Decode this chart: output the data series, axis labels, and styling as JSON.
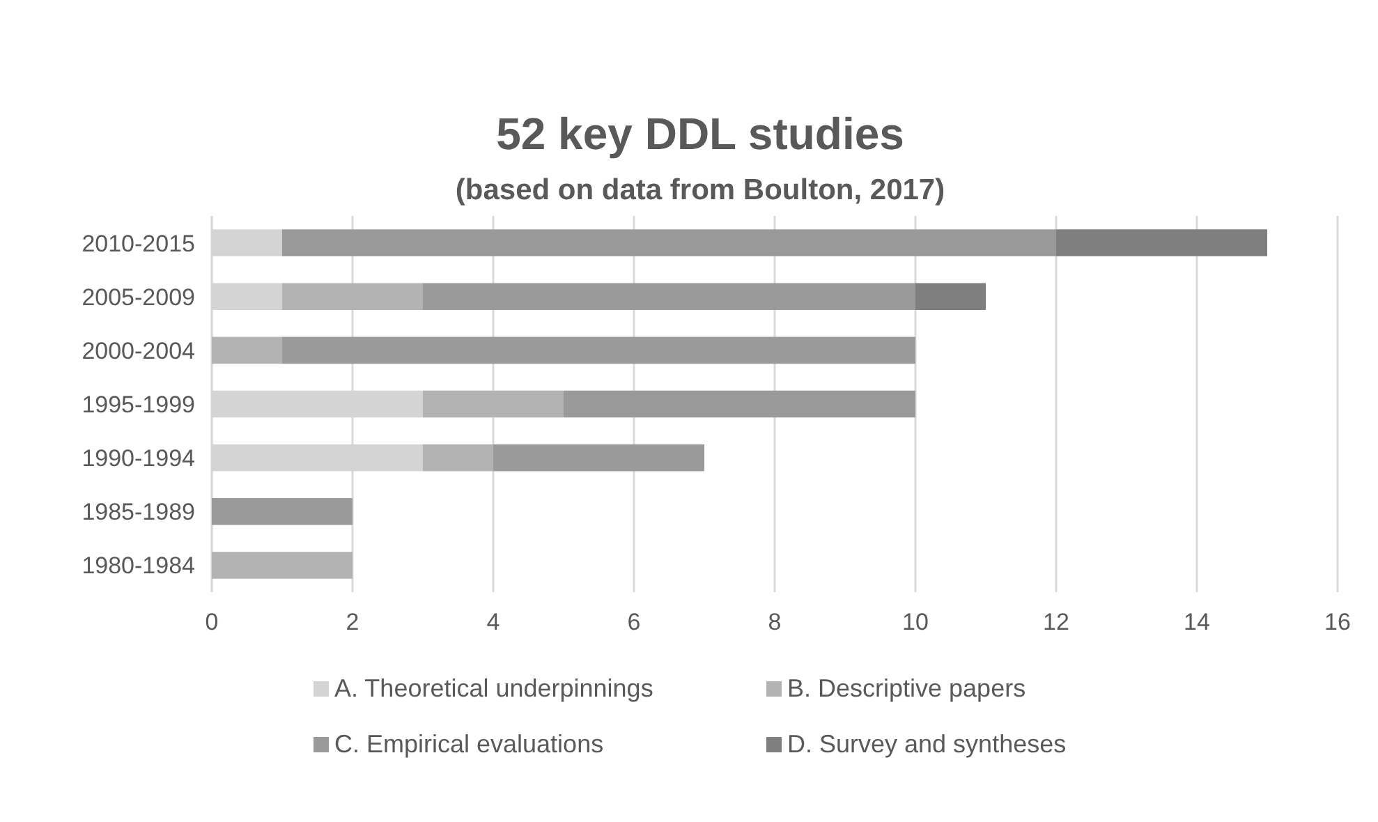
{
  "chart_data": {
    "type": "bar",
    "orientation": "horizontal",
    "stacked": true,
    "title": "52 key DDL studies",
    "subtitle": "(based on data from Boulton, 2017)",
    "categories": [
      "2010-2015",
      "2005-2009",
      "2000-2004",
      "1995-1999",
      "1990-1994",
      "1985-1989",
      "1980-1984"
    ],
    "series": [
      {
        "name": "A. Theoretical underpinnings",
        "color": "#d4d4d4",
        "values": [
          1,
          1,
          0,
          3,
          3,
          0,
          0
        ]
      },
      {
        "name": "B. Descriptive papers",
        "color": "#b3b3b3",
        "values": [
          0,
          2,
          1,
          2,
          1,
          0,
          2
        ]
      },
      {
        "name": "C. Empirical evaluations",
        "color": "#9a9a9a",
        "values": [
          11,
          7,
          9,
          5,
          3,
          2,
          0
        ]
      },
      {
        "name": "D. Survey and syntheses",
        "color": "#7f7f7f",
        "values": [
          3,
          1,
          0,
          0,
          0,
          0,
          0
        ]
      }
    ],
    "xlim": [
      0,
      16
    ],
    "xticks": [
      0,
      2,
      4,
      6,
      8,
      10,
      12,
      14,
      16
    ],
    "grid": "x",
    "legend": "bottom"
  }
}
